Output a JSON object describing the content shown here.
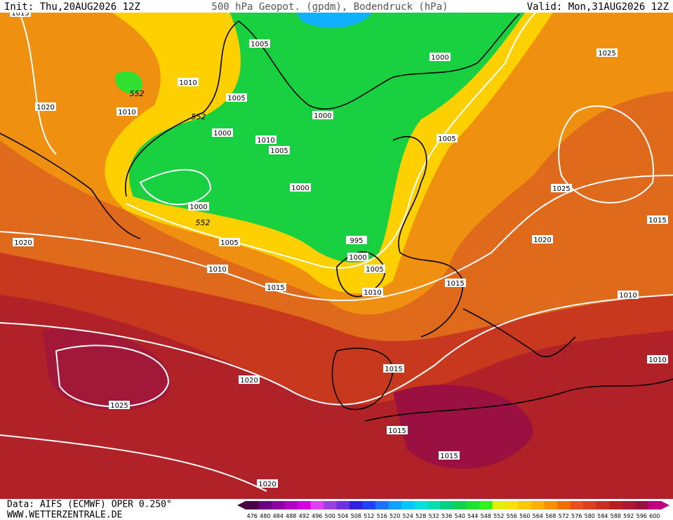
{
  "header": {
    "init": "Init: Thu,20AUG2026 12Z",
    "title": "500 hPa Geopot. (gpdm), Bodendruck (hPa)",
    "valid": "Valid: Mon,31AUG2026 12Z"
  },
  "footer": {
    "data": "Data: AIFS (ECMWF) OPER 0.250°",
    "site": "WWW.WETTERZENTRALE.DE"
  },
  "colorbar": {
    "labels": [
      476,
      480,
      484,
      488,
      492,
      496,
      500,
      504,
      508,
      512,
      516,
      520,
      524,
      528,
      532,
      536,
      540,
      544,
      548,
      552,
      556,
      560,
      564,
      568,
      572,
      576,
      580,
      584,
      588,
      592,
      596,
      600
    ],
    "colors": [
      "#4b0046",
      "#6a0080",
      "#8a00a0",
      "#b000c0",
      "#d000e0",
      "#e040f0",
      "#a040e0",
      "#7030e0",
      "#3020e0",
      "#2040ff",
      "#2070ff",
      "#10a0ff",
      "#00c8ff",
      "#00e0e0",
      "#00e0b0",
      "#00d080",
      "#10d050",
      "#20e030",
      "#30f020",
      "#e0f000",
      "#ffe000",
      "#ffc800",
      "#ffb000",
      "#f89000",
      "#f07000",
      "#e85020",
      "#d84020",
      "#c83020",
      "#b82020",
      "#a81830",
      "#981040",
      "#c00080"
    ]
  },
  "map": {
    "isobar_labels": [
      1015,
      1005,
      1000,
      1025,
      1010,
      1005,
      1020,
      1010,
      1000,
      1000,
      1005,
      1010,
      1005,
      1000,
      1025,
      1000,
      1015,
      1020,
      1005,
      995,
      1020,
      1000,
      1010,
      1005,
      1015,
      1015,
      1010,
      1010,
      1010,
      1015,
      1020,
      1025,
      1015,
      1015,
      1020
    ],
    "height_labels": [
      552,
      552,
      552
    ]
  }
}
